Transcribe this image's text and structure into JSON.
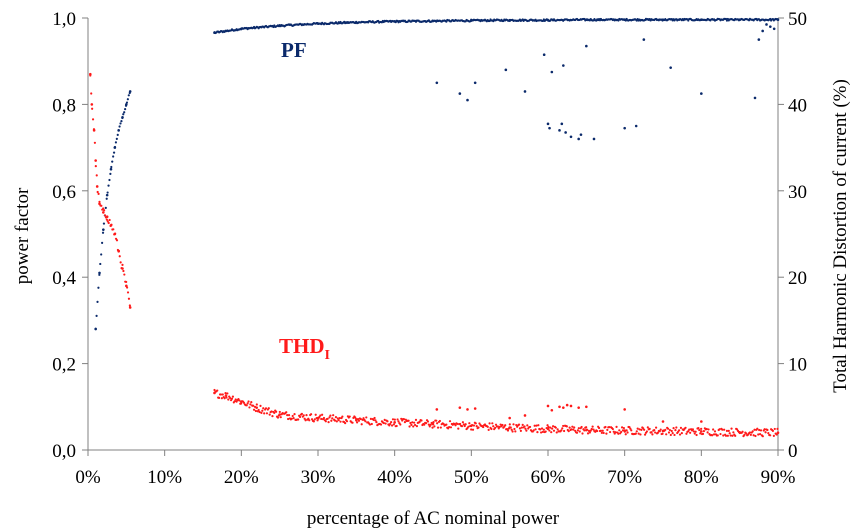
{
  "chart_data": {
    "type": "scatter",
    "title": "",
    "xlabel": "percentage of AC nominal power",
    "ylabel_left": "power factor",
    "ylabel_right": "Total Harmonic Distortion of current (%)",
    "xlim": [
      0,
      90
    ],
    "ylim_left": [
      0,
      1
    ],
    "ylim_right": [
      0,
      50
    ],
    "grid": false,
    "legend": "none",
    "x_ticks": [
      "0%",
      "10%",
      "20%",
      "30%",
      "40%",
      "50%",
      "60%",
      "70%",
      "80%",
      "90%"
    ],
    "y_left_ticks": [
      "0,0",
      "0,2",
      "0,4",
      "0,6",
      "0,8",
      "1,0"
    ],
    "y_right_ticks": [
      "0",
      "10",
      "20",
      "30",
      "40",
      "50"
    ],
    "annotations": {
      "pf_label": "PF",
      "thd_label": "THD",
      "thd_label_sub": "I"
    },
    "colors": {
      "pf": "#0b2a6b",
      "thd": "#ff1a1a"
    },
    "series": [
      {
        "id": "pf",
        "axis": "left",
        "segments": [
          {
            "x": [
              1.0,
              1.5,
              2.0,
              2.5,
              3.0,
              3.5,
              4.0,
              4.5,
              5.0,
              5.5
            ],
            "y": [
              0.28,
              0.41,
              0.51,
              0.59,
              0.65,
              0.7,
              0.74,
              0.77,
              0.8,
              0.83
            ]
          },
          {
            "x": [
              16.5,
              20,
              25,
              30,
              35,
              40,
              45,
              50,
              55,
              60,
              65,
              70,
              75,
              80,
              85,
              90
            ],
            "y": [
              0.966,
              0.975,
              0.982,
              0.987,
              0.99,
              0.992,
              0.993,
              0.994,
              0.995,
              0.995,
              0.996,
              0.996,
              0.996,
              0.996,
              0.996,
              0.996
            ]
          }
        ],
        "outliers": [
          [
            45.5,
            0.85
          ],
          [
            48.5,
            0.825
          ],
          [
            49.5,
            0.81
          ],
          [
            50.5,
            0.85
          ],
          [
            54.5,
            0.88
          ],
          [
            57,
            0.83
          ],
          [
            59.5,
            0.915
          ],
          [
            60,
            0.755
          ],
          [
            60.2,
            0.745
          ],
          [
            60.5,
            0.875
          ],
          [
            61.5,
            0.74
          ],
          [
            61.8,
            0.755
          ],
          [
            62,
            0.89
          ],
          [
            62.3,
            0.735
          ],
          [
            63,
            0.725
          ],
          [
            64,
            0.72
          ],
          [
            64.3,
            0.73
          ],
          [
            65,
            0.935
          ],
          [
            66,
            0.72
          ],
          [
            70,
            0.745
          ],
          [
            71.5,
            0.75
          ],
          [
            72.5,
            0.95
          ],
          [
            76,
            0.885
          ],
          [
            80,
            0.825
          ],
          [
            87,
            0.815
          ],
          [
            87.5,
            0.95
          ],
          [
            88,
            0.97
          ],
          [
            88.5,
            0.985
          ],
          [
            89,
            0.98
          ],
          [
            89.5,
            0.975
          ]
        ]
      },
      {
        "id": "thd",
        "axis": "right",
        "segments": [
          {
            "x": [
              0.3,
              0.5,
              0.8,
              1.0,
              1.2,
              1.5,
              2.0,
              2.5,
              3.0,
              3.5,
              4.0,
              4.5,
              5.0,
              5.5
            ],
            "y": [
              43.5,
              40.0,
              37.0,
              33.5,
              30.5,
              28.5,
              27.5,
              27.0,
              26.0,
              25.0,
              23.0,
              21.0,
              19.0,
              16.5
            ]
          },
          {
            "x": [
              16.5,
              18,
              20,
              22,
              25,
              30,
              35,
              40,
              45,
              50,
              55,
              60,
              65,
              70,
              75,
              80,
              85,
              90
            ],
            "y": [
              6.6,
              6.3,
              5.6,
              4.9,
              4.1,
              3.7,
              3.45,
              3.2,
              3.0,
              2.8,
              2.6,
              2.45,
              2.3,
              2.25,
              2.2,
              2.15,
              2.05,
              2.0
            ]
          }
        ],
        "outliers": [
          [
            45.5,
            4.7
          ],
          [
            48.5,
            4.9
          ],
          [
            49.5,
            4.7
          ],
          [
            50.5,
            4.8
          ],
          [
            55,
            3.7
          ],
          [
            57,
            4.0
          ],
          [
            60,
            5.1
          ],
          [
            60.5,
            4.6
          ],
          [
            61.5,
            5.0
          ],
          [
            62,
            4.9
          ],
          [
            62.5,
            5.2
          ],
          [
            63,
            5.1
          ],
          [
            64,
            4.9
          ],
          [
            65,
            5.0
          ],
          [
            70,
            4.7
          ],
          [
            75,
            3.3
          ],
          [
            80,
            3.3
          ]
        ]
      }
    ]
  }
}
